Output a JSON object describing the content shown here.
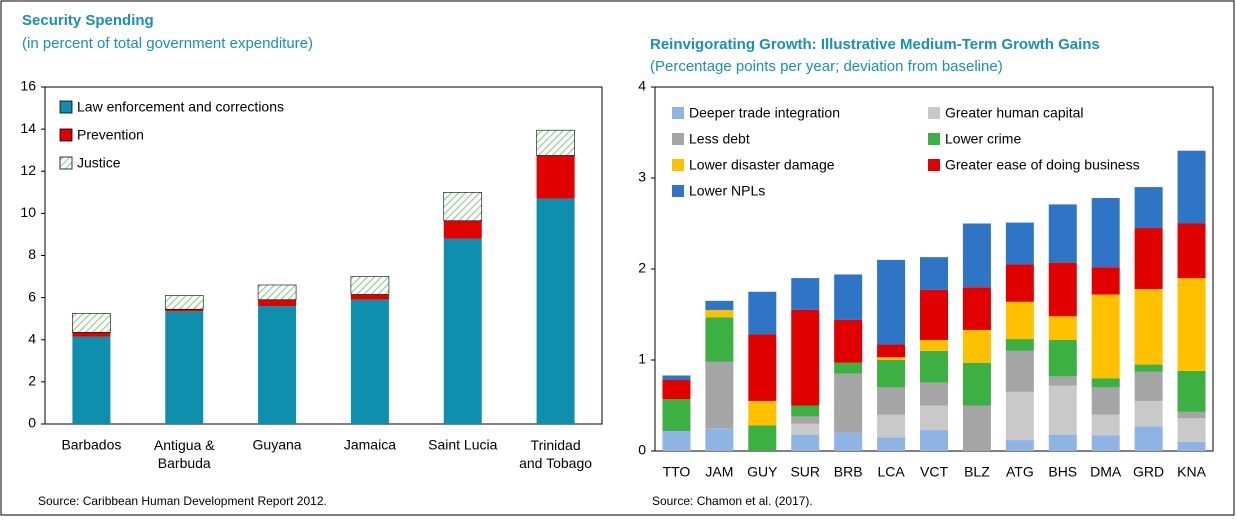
{
  "chart_data": [
    {
      "type": "stacked_bar",
      "title": "Security Spending",
      "subtitle": "(in percent of total government expenditure)",
      "source": "Source: Caribbean Human Development Report 2012.",
      "categories": [
        "Barbados",
        "Antigua & Barbuda",
        "Guyana",
        "Jamaica",
        "Saint Lucia",
        "Trinidad and Tobago"
      ],
      "series": [
        {
          "name": "Law enforcement and corrections",
          "color": "#0f8fae",
          "values": [
            4.15,
            5.35,
            5.6,
            5.9,
            8.8,
            10.7
          ]
        },
        {
          "name": "Prevention",
          "color": "#e00000",
          "values": [
            0.2,
            0.1,
            0.3,
            0.25,
            0.85,
            2.05
          ]
        },
        {
          "name": "Justice",
          "color": "#8cc88c",
          "pattern": "hatch",
          "values": [
            0.9,
            0.65,
            0.7,
            0.85,
            1.35,
            1.2
          ]
        }
      ],
      "ylim": [
        0,
        16
      ],
      "yticks": [
        0,
        2,
        4,
        6,
        8,
        10,
        12,
        14,
        16
      ],
      "legend": "top-left",
      "legend_columns": 1
    },
    {
      "type": "stacked_bar",
      "title": "Reinvigorating Growth: Illustrative Medium-Term Growth Gains",
      "subtitle": "(Percentage points per year; deviation from baseline)",
      "source": "Source: Chamon et al. (2017).",
      "categories": [
        "TTO",
        "JAM",
        "GUY",
        "SUR",
        "BRB",
        "LCA",
        "VCT",
        "BLZ",
        "ATG",
        "BHS",
        "DMA",
        "GRD",
        "KNA"
      ],
      "series": [
        {
          "name": "Deeper trade integration",
          "color": "#8db4e2",
          "values": [
            0.22,
            0.25,
            0,
            0.18,
            0.2,
            0.15,
            0.23,
            0,
            0.12,
            0.18,
            0.17,
            0.27,
            0.1
          ]
        },
        {
          "name": "Greater human capital",
          "color": "#c9c9c9",
          "values": [
            0,
            0,
            0,
            0.12,
            0,
            0.25,
            0.27,
            0,
            0.53,
            0.54,
            0.23,
            0.28,
            0.26
          ]
        },
        {
          "name": "Less debt",
          "color": "#a5a5a5",
          "values": [
            0,
            0.73,
            0,
            0.08,
            0.65,
            0.3,
            0.25,
            0.5,
            0.45,
            0.1,
            0.3,
            0.32,
            0.07
          ]
        },
        {
          "name": "Lower crime",
          "color": "#3cb043",
          "values": [
            0.35,
            0.49,
            0.28,
            0.12,
            0.12,
            0.3,
            0.35,
            0.47,
            0.13,
            0.4,
            0.1,
            0.08,
            0.45
          ]
        },
        {
          "name": "Lower disaster damage",
          "color": "#ffc000",
          "values": [
            0,
            0.08,
            0.27,
            0,
            0,
            0.03,
            0.12,
            0.36,
            0.41,
            0.26,
            0.92,
            0.83,
            1.02
          ]
        },
        {
          "name": "Greater ease of doing business",
          "color": "#e00000",
          "values": [
            0.21,
            0,
            0.73,
            1.05,
            0.47,
            0.14,
            0.55,
            0.47,
            0.41,
            0.59,
            0.3,
            0.67,
            0.6
          ]
        },
        {
          "name": "Lower NPLs",
          "color": "#2e75c6",
          "values": [
            0.05,
            0.1,
            0.47,
            0.35,
            0.5,
            0.93,
            0.36,
            0.7,
            0.46,
            0.64,
            0.76,
            0.45,
            0.8
          ]
        }
      ],
      "ylim": [
        0,
        4
      ],
      "yticks": [
        0,
        1,
        2,
        3,
        4
      ],
      "legend": "top-left",
      "legend_columns": 2
    }
  ]
}
